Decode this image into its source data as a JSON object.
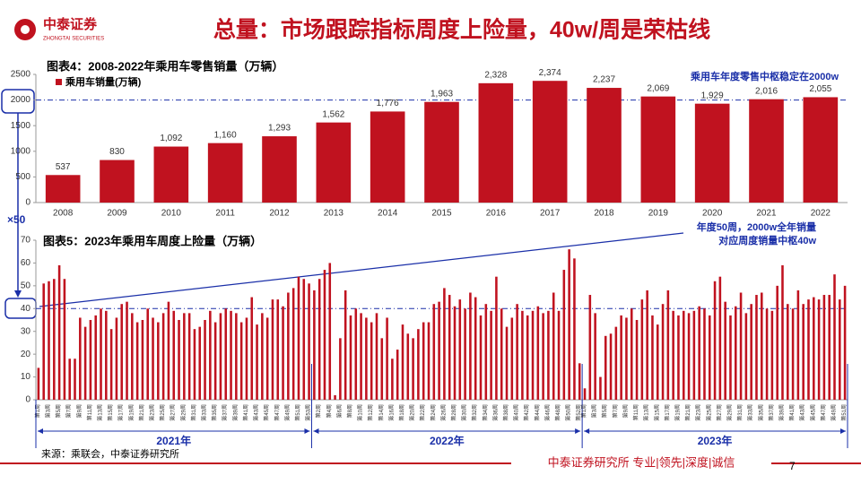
{
  "header": {
    "logo": "中泰证券",
    "logo_en": "ZHONGTAI SECURITIES",
    "title": "总量：市场跟踪指标周度上险量，40w/周是荣枯线"
  },
  "chart_data": [
    {
      "type": "bar",
      "title": "图表4：2008-2022年乘用车零售销量（万辆）",
      "categories": [
        "2008",
        "2009",
        "2010",
        "2011",
        "2012",
        "2013",
        "2014",
        "2015",
        "2016",
        "2017",
        "2018",
        "2019",
        "2020",
        "2021",
        "2022"
      ],
      "series": [
        {
          "name": "乘用车销量(万辆)",
          "color": "#c0121f",
          "values": [
            537,
            830,
            1092,
            1160,
            1293,
            1562,
            1776,
            1963,
            2328,
            2374,
            2237,
            2069,
            1929,
            2016,
            2055
          ],
          "value_labels": [
            "537",
            "830",
            "1,092",
            "1,160",
            "1,293",
            "1,562",
            "1,776",
            "1,963",
            "2,328",
            "2,374",
            "2,237",
            "2,069",
            "1,929",
            "2,016",
            "2,055"
          ]
        }
      ],
      "ylim": [
        0,
        2500
      ],
      "yticks": [
        0,
        500,
        1000,
        1500,
        2000,
        2500
      ],
      "reference_line": 2000,
      "annotation": "乘用车年度零售中枢稳定在2000w"
    },
    {
      "type": "bar",
      "title": "图表5：2023年乘用车周度上险量（万辆）",
      "color": "#c0121f",
      "groups": [
        {
          "name": "2021年",
          "categories": [
            "第1周",
            null,
            "第3周",
            null,
            "第5周",
            null,
            "第7周",
            null,
            "第9周",
            null,
            "第11周",
            null,
            "第13周",
            null,
            "第15周",
            null,
            "第17周",
            null,
            "第19周",
            null,
            "第21周",
            null,
            "第23周",
            null,
            "第25周",
            null,
            "第27周",
            null,
            "第29周",
            null,
            "第31周",
            null,
            "第33周",
            null,
            "第35周",
            null,
            "第37周",
            null,
            "第39周",
            null,
            "第41周",
            null,
            "第43周",
            null,
            "第45周",
            null,
            "第47周",
            null,
            "第49周",
            null,
            "第51周",
            null,
            "第53周"
          ],
          "values": [
            14,
            51,
            52,
            53,
            59,
            53,
            18,
            18,
            36,
            32,
            35,
            37,
            40,
            39,
            31,
            36,
            42,
            43,
            38,
            34,
            35,
            40,
            36,
            34,
            38,
            43,
            39,
            35,
            38,
            38,
            31,
            32,
            35,
            39,
            34,
            38,
            40,
            39,
            38,
            34,
            36,
            45,
            33,
            38,
            36,
            44,
            44,
            41,
            47,
            49,
            54,
            53,
            51
          ]
        },
        {
          "name": "2022年",
          "categories": [
            null,
            "第2周",
            null,
            "第4周",
            null,
            "第6周",
            null,
            "第8周",
            null,
            "第10周",
            null,
            "第12周",
            null,
            "第14周",
            null,
            "第16周",
            null,
            "第18周",
            null,
            "第20周",
            null,
            "第22周",
            null,
            "第24周",
            null,
            "第26周",
            null,
            "第28周",
            null,
            "第30周",
            null,
            "第32周",
            null,
            "第34周",
            null,
            "第36周",
            null,
            "第38周",
            null,
            "第40周",
            null,
            "第42周",
            null,
            "第44周",
            null,
            "第46周",
            null,
            "第48周",
            null,
            "第50周",
            null,
            "第52周"
          ],
          "values": [
            48,
            53,
            57,
            60,
            2,
            27,
            48,
            37,
            40,
            38,
            36,
            34,
            38,
            27,
            36,
            18,
            22,
            33,
            29,
            27,
            31,
            34,
            34,
            42,
            43,
            49,
            46,
            41,
            44,
            40,
            47,
            45,
            37,
            42,
            39,
            54,
            40,
            32,
            36,
            42,
            39,
            37,
            39,
            41,
            38,
            39,
            47,
            39,
            57,
            66,
            62,
            16
          ]
        },
        {
          "name": "2023年",
          "categories": [
            "第1周",
            null,
            "第3周",
            null,
            "第5周",
            null,
            "第7周",
            null,
            "第9周",
            null,
            "第11周",
            null,
            "第13周",
            null,
            "第15周",
            null,
            "第17周",
            null,
            "第19周",
            null,
            "第21周",
            null,
            "第23周",
            null,
            "第25周",
            null,
            "第27周",
            null,
            "第29周",
            null,
            "第31周",
            null,
            "第33周",
            null,
            "第35周",
            null,
            "第37周",
            null,
            "第39周",
            null,
            "第41周",
            null,
            "第43周",
            null,
            "第45周",
            null,
            "第47周",
            null,
            "第49周",
            null,
            "第51周"
          ],
          "values": [
            5,
            46,
            38,
            10,
            28,
            29,
            32,
            37,
            36,
            40,
            35,
            44,
            48,
            37,
            33,
            42,
            48,
            39,
            37,
            39,
            38,
            39,
            41,
            40,
            37,
            52,
            54,
            43,
            37,
            41,
            47,
            38,
            42,
            46,
            47,
            40,
            39,
            50,
            59,
            42,
            40,
            48,
            42,
            44,
            45,
            44,
            46,
            46,
            55,
            44,
            50
          ]
        }
      ],
      "ylim": [
        0,
        70
      ],
      "yticks": [
        0,
        10,
        20,
        30,
        40,
        50,
        60,
        70
      ],
      "reference_line": 40,
      "multiplier": "×50",
      "annotation_lines": [
        "年度50周，2000w全年销量",
        "对应周度销量中枢40w"
      ]
    }
  ],
  "footer": {
    "source": "来源：乘联会，中泰证券研究所",
    "slogan": "中泰证券研究所 专业|领先|深度|诚信",
    "page": "7"
  }
}
